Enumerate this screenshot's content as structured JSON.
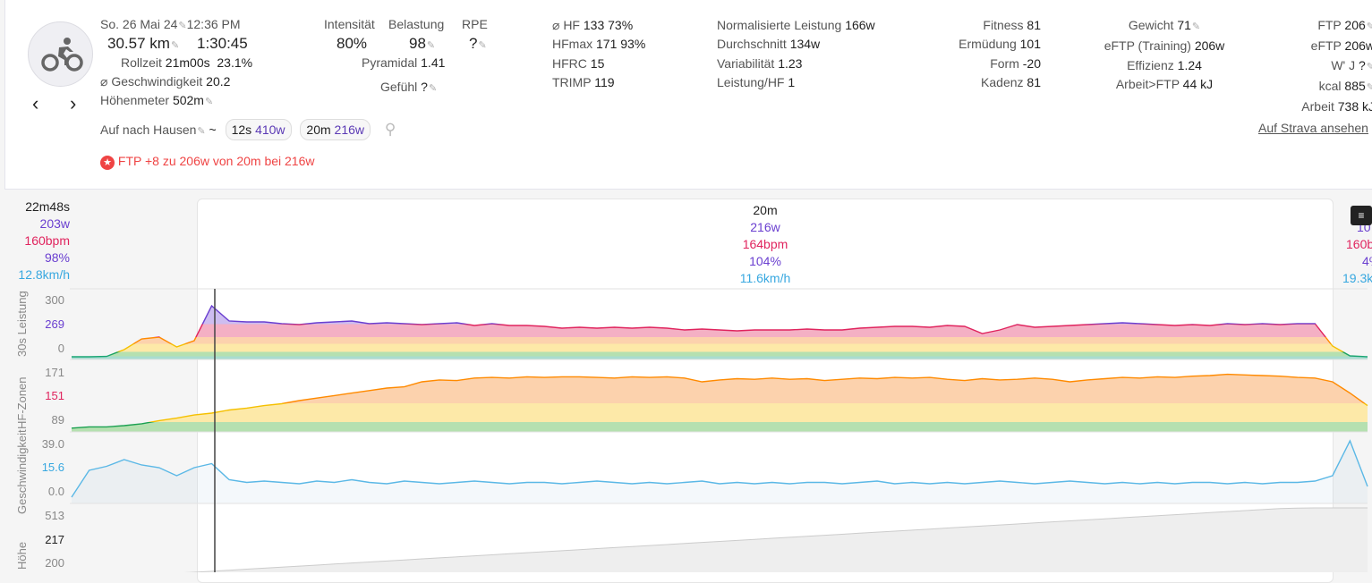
{
  "header": {
    "date": "So. 26 Mai 24",
    "time": "12:36 PM",
    "distance": "30.57 km",
    "duration": "1:30:45",
    "rollzeit_label": "Rollzeit",
    "rollzeit": "21m00s",
    "rollzeit_pct": "23.1%",
    "speed_label": "⌀ Geschwindigkeit",
    "speed": "20.2",
    "hoehe_label": "Höhenmeter",
    "hoehe": "502m",
    "intensity_label": "Intensität",
    "intensity": "80%",
    "load_label": "Belastung",
    "load": "98",
    "rpe_label": "RPE",
    "rpe": "?",
    "pyramidal_label": "Pyramidal",
    "pyramidal": "1.41",
    "gefuehl_label": "Gefühl",
    "gefuehl": "?",
    "name": "Auf nach Hausen",
    "tilde": "~",
    "chips": [
      {
        "d": "12s",
        "w": "410w"
      },
      {
        "d": "20m",
        "w": "216w"
      }
    ],
    "ftp_msg": "FTP +8 zu 206w von 20m bei 216w",
    "strava": "Auf Strava ansehen"
  },
  "hr_col": [
    {
      "l": "⌀ HF",
      "v": "133  73%"
    },
    {
      "l": "HFmax",
      "v": "171  93%"
    },
    {
      "l": "HFRC",
      "v": "15"
    },
    {
      "l": "TRIMP",
      "v": "119"
    }
  ],
  "power_col": [
    {
      "l": "Normalisierte Leistung",
      "v": "166w"
    },
    {
      "l": "Durchschnitt",
      "v": "134w"
    },
    {
      "l": "Variabilität",
      "v": "1.23"
    },
    {
      "l": "Leistung/HF",
      "v": "1"
    }
  ],
  "fitness_col": [
    {
      "l": "Fitness",
      "v": "81"
    },
    {
      "l": "Ermüdung",
      "v": "101"
    },
    {
      "l": "Form",
      "v": "-20"
    },
    {
      "l": "Kadenz",
      "v": "81"
    }
  ],
  "weight_col": [
    {
      "l": "Gewicht",
      "v": "71"
    },
    {
      "l": "eFTP (Training)",
      "v": "206w"
    },
    {
      "l": "Effizienz",
      "v": "1.24"
    },
    {
      "l": "Arbeit>FTP",
      "v": "44 kJ"
    }
  ],
  "ftp_col": [
    {
      "l": "FTP",
      "v": "206"
    },
    {
      "l": "eFTP",
      "v": "206w"
    },
    {
      "l": "W' J",
      "v": "?"
    },
    {
      "l": "kcal",
      "v": "885"
    },
    {
      "l": "Arbeit",
      "v": "738 kJ"
    }
  ],
  "cursor": {
    "time": "22m48s",
    "power": "203w",
    "hr": "160bpm",
    "pct": "98%",
    "speed": "12.8km/h"
  },
  "selection": {
    "time": "20m",
    "power": "216w",
    "hr": "164bpm",
    "pct": "104%",
    "speed": "11.6km/h"
  },
  "right": {
    "power": "10",
    "hr": "160b",
    "pct": "4%",
    "speed": "19.3k"
  },
  "colors": {
    "purple": "#6a3fd0",
    "red": "#e0245e",
    "blue": "#38a8e0",
    "accent_red": "#ef4444"
  },
  "chart_data": {
    "type": "line",
    "rows": [
      {
        "name": "30s Leistung",
        "ticks": [
          "300",
          "269",
          "0"
        ],
        "highlight": "269",
        "values": [
          0,
          0,
          2,
          40,
          100,
          110,
          55,
          90,
          285,
          200,
          195,
          195,
          185,
          180,
          190,
          195,
          200,
          185,
          190,
          185,
          180,
          185,
          190,
          175,
          185,
          175,
          175,
          170,
          160,
          165,
          160,
          165,
          160,
          165,
          160,
          150,
          155,
          150,
          145,
          150,
          150,
          150,
          155,
          150,
          150,
          160,
          165,
          170,
          170,
          165,
          175,
          170,
          130,
          150,
          180,
          165,
          170,
          175,
          180,
          185,
          190,
          185,
          180,
          175,
          180,
          175,
          185,
          180,
          185,
          180,
          185,
          185,
          60,
          5,
          0
        ]
      },
      {
        "name": "HF-Zonen",
        "ticks": [
          "171",
          "151",
          "89"
        ],
        "highlight": "151",
        "values": [
          76,
          78,
          78,
          80,
          83,
          88,
          92,
          97,
          100,
          105,
          108,
          112,
          115,
          120,
          124,
          128,
          132,
          136,
          140,
          142,
          150,
          153,
          152,
          156,
          157,
          156,
          158,
          157,
          158,
          158,
          157,
          156,
          158,
          157,
          158,
          156,
          150,
          153,
          155,
          154,
          156,
          154,
          155,
          152,
          154,
          156,
          155,
          157,
          156,
          157,
          154,
          152,
          155,
          153,
          154,
          156,
          154,
          150,
          153,
          155,
          157,
          156,
          158,
          157,
          159,
          160,
          162,
          161,
          160,
          159,
          157,
          156,
          150,
          132,
          112
        ]
      },
      {
        "name": "Geschwindigkeit",
        "ticks": [
          "39.0",
          "15.6",
          "0.0"
        ],
        "highlight": "15.6",
        "values": [
          0,
          20,
          23,
          28,
          24,
          22,
          16,
          22,
          25,
          13,
          11,
          12,
          11,
          10,
          12,
          11,
          13,
          11,
          10,
          12,
          11,
          10,
          11,
          12,
          11,
          10,
          11,
          11,
          10,
          11,
          12,
          11,
          10,
          11,
          10,
          11,
          12,
          10,
          11,
          10,
          11,
          10,
          11,
          11,
          10,
          11,
          12,
          10,
          11,
          10,
          11,
          10,
          11,
          12,
          11,
          10,
          11,
          12,
          11,
          10,
          11,
          10,
          11,
          10,
          11,
          11,
          10,
          11,
          10,
          11,
          11,
          12,
          16,
          42,
          8
        ]
      },
      {
        "name": "Höhe",
        "ticks": [
          "513",
          "217",
          "200"
        ],
        "highlight": "217",
        "values": [
          190,
          190,
          190,
          190,
          192,
          194,
          196,
          200,
          205,
          210,
          215,
          220,
          225,
          230,
          235,
          240,
          245,
          250,
          255,
          260,
          265,
          270,
          275,
          280,
          285,
          290,
          295,
          300,
          305,
          310,
          315,
          320,
          325,
          330,
          335,
          340,
          345,
          350,
          355,
          360,
          365,
          370,
          375,
          380,
          385,
          390,
          395,
          400,
          405,
          410,
          415,
          420,
          425,
          430,
          435,
          440,
          445,
          450,
          455,
          460,
          465,
          470,
          475,
          480,
          485,
          490,
          495,
          500,
          505,
          510,
          512,
          513,
          513,
          513,
          513
        ]
      }
    ]
  }
}
